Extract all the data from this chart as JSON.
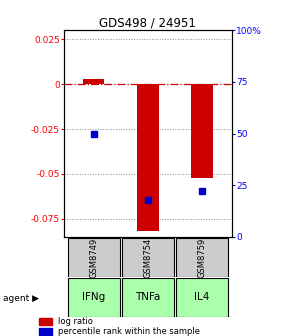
{
  "title": "GDS498 / 24951",
  "samples": [
    "GSM8749",
    "GSM8754",
    "GSM8759"
  ],
  "agents": [
    "IFNg",
    "TNFa",
    "IL4"
  ],
  "log_ratios": [
    0.003,
    -0.082,
    -0.052
  ],
  "percentile_ranks": [
    0.5,
    0.18,
    0.22
  ],
  "ylim_left": [
    -0.085,
    0.03
  ],
  "ylim_right": [
    0.0,
    1.0
  ],
  "yticks_left": [
    0.025,
    0.0,
    -0.025,
    -0.05,
    -0.075
  ],
  "ytick_labels_left": [
    "0.025",
    "0",
    "-0.025",
    "-0.05",
    "-0.075"
  ],
  "yticks_right": [
    1.0,
    0.75,
    0.5,
    0.25,
    0.0
  ],
  "ytick_labels_right": [
    "100%",
    "75",
    "50",
    "25",
    "0"
  ],
  "bar_color": "#cc0000",
  "dot_color": "#0000cc",
  "sample_bg_color": "#cccccc",
  "agent_bg_color": "#aaffaa",
  "bar_width": 0.4,
  "hline_color": "#cc0000",
  "hline_style": "-.",
  "grid_color": "#888888",
  "grid_style": ":"
}
